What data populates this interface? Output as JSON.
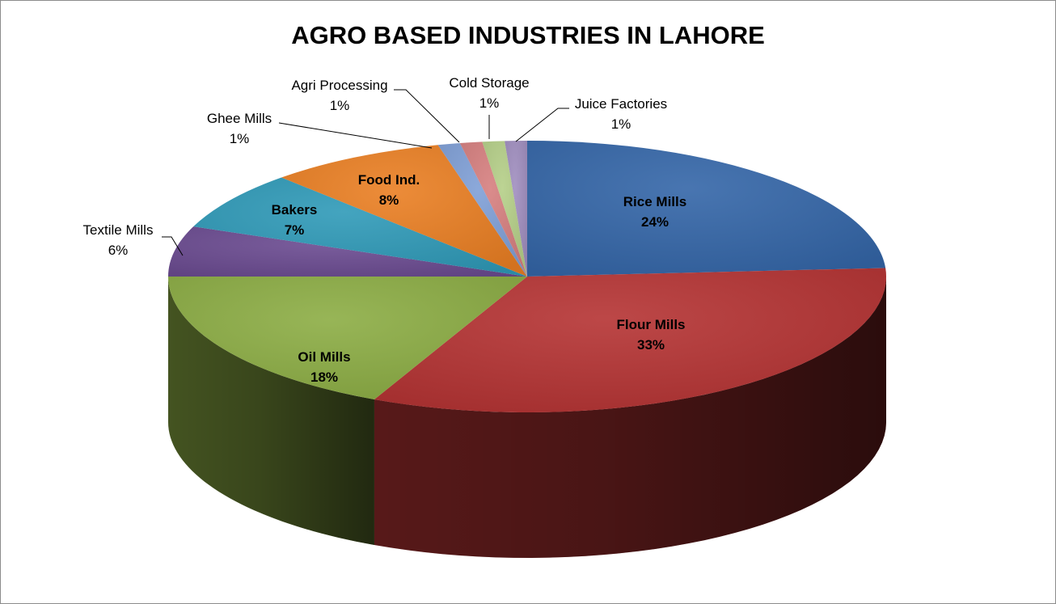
{
  "chart_data": {
    "type": "pie",
    "title": "AGRO BASED INDUSTRIES IN LAHORE",
    "start_angle_deg": 90,
    "direction": "clockwise",
    "three_d": true,
    "slices": [
      {
        "name": "Rice Mills",
        "value": 24,
        "pct_label": "24%",
        "color": "#3466a8",
        "label_position": "inside"
      },
      {
        "name": "Flour Mills",
        "value": 33,
        "pct_label": "33%",
        "color": "#b53333",
        "label_position": "inside"
      },
      {
        "name": "Oil Mills",
        "value": 18,
        "pct_label": "18%",
        "color": "#8cad44",
        "label_position": "inside"
      },
      {
        "name": "Textile Mills",
        "value": 6,
        "pct_label": "6%",
        "color": "#6b4b91",
        "label_position": "outside"
      },
      {
        "name": "Bakers",
        "value": 7,
        "pct_label": "7%",
        "color": "#2f9ab8",
        "label_position": "inside"
      },
      {
        "name": "Food Ind.",
        "value": 8,
        "pct_label": "8%",
        "color": "#ea7f23",
        "label_position": "inside"
      },
      {
        "name": "Ghee Mills",
        "value": 1,
        "pct_label": "1%",
        "color": "#7f9fd6",
        "label_position": "outside"
      },
      {
        "name": "Agri Processing",
        "value": 1,
        "pct_label": "1%",
        "color": "#d67f7f",
        "label_position": "outside"
      },
      {
        "name": "Cold Storage",
        "value": 1,
        "pct_label": "1%",
        "color": "#b5cf88",
        "label_position": "outside"
      },
      {
        "name": "Juice Factories",
        "value": 1,
        "pct_label": "1%",
        "color": "#a08ebf",
        "label_position": "outside"
      }
    ]
  }
}
